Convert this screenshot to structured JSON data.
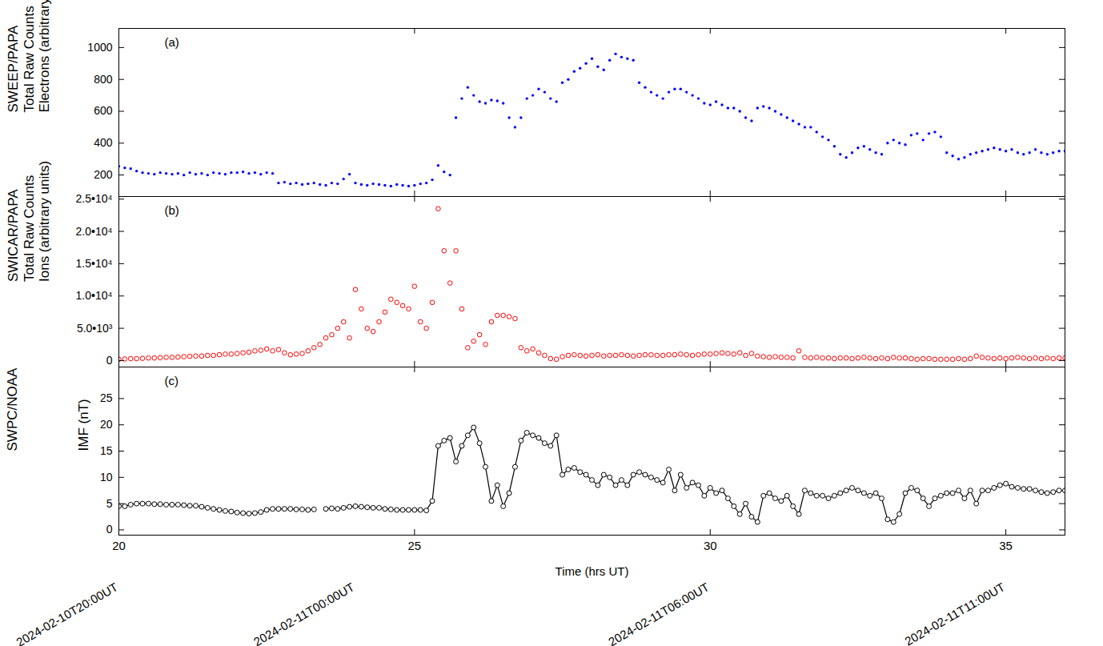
{
  "chart_data": [
    {
      "type": "scatter",
      "title": "(a)",
      "ylabel": [
        "SWEEP/PAPA",
        "Total Raw Counts",
        "Electrons (arbitrary units)"
      ],
      "x": [
        20,
        20.1,
        20.2,
        20.3,
        20.4,
        20.5,
        20.6,
        20.7,
        20.8,
        20.9,
        21,
        21.1,
        21.2,
        21.3,
        21.4,
        21.5,
        21.6,
        21.7,
        21.8,
        21.9,
        22,
        22.1,
        22.2,
        22.3,
        22.4,
        22.5,
        22.6,
        22.7,
        22.8,
        22.9,
        23,
        23.1,
        23.2,
        23.3,
        23.4,
        23.5,
        23.6,
        23.7,
        23.8,
        23.9,
        24,
        24.1,
        24.2,
        24.3,
        24.4,
        24.5,
        24.6,
        24.7,
        24.8,
        24.9,
        25,
        25.1,
        25.2,
        25.3,
        25.4,
        25.5,
        25.6,
        25.7,
        25.8,
        25.9,
        26,
        26.1,
        26.2,
        26.3,
        26.4,
        26.5,
        26.6,
        26.7,
        26.8,
        26.9,
        27,
        27.1,
        27.2,
        27.3,
        27.4,
        27.5,
        27.6,
        27.7,
        27.8,
        27.9,
        28,
        28.1,
        28.2,
        28.3,
        28.4,
        28.5,
        28.6,
        28.7,
        28.8,
        28.9,
        29,
        29.1,
        29.2,
        29.3,
        29.4,
        29.5,
        29.6,
        29.7,
        29.8,
        29.9,
        30,
        30.1,
        30.2,
        30.3,
        30.4,
        30.5,
        30.6,
        30.7,
        30.8,
        30.9,
        31,
        31.1,
        31.2,
        31.3,
        31.4,
        31.5,
        31.6,
        31.7,
        31.8,
        31.9,
        32,
        32.1,
        32.2,
        32.3,
        32.4,
        32.5,
        32.6,
        32.7,
        32.8,
        32.9,
        33,
        33.1,
        33.2,
        33.3,
        33.4,
        33.5,
        33.6,
        33.7,
        33.8,
        33.9,
        34,
        34.1,
        34.2,
        34.3,
        34.4,
        34.5,
        34.6,
        34.7,
        34.8,
        34.9,
        35,
        35.1,
        35.2,
        35.3,
        35.4,
        35.5,
        35.6,
        35.7,
        35.8,
        35.9,
        36
      ],
      "values": [
        255,
        245,
        240,
        225,
        215,
        210,
        205,
        215,
        210,
        205,
        210,
        200,
        215,
        205,
        210,
        200,
        215,
        210,
        205,
        215,
        215,
        220,
        210,
        215,
        205,
        215,
        210,
        150,
        155,
        145,
        150,
        140,
        145,
        150,
        140,
        135,
        150,
        145,
        175,
        205,
        150,
        140,
        135,
        145,
        140,
        135,
        130,
        140,
        135,
        130,
        135,
        145,
        150,
        170,
        260,
        220,
        200,
        560,
        680,
        750,
        700,
        660,
        650,
        670,
        665,
        650,
        560,
        500,
        560,
        680,
        700,
        740,
        720,
        680,
        660,
        780,
        800,
        850,
        870,
        900,
        930,
        880,
        860,
        920,
        960,
        940,
        930,
        920,
        780,
        750,
        720,
        700,
        680,
        720,
        740,
        740,
        720,
        700,
        680,
        650,
        640,
        660,
        640,
        620,
        620,
        600,
        560,
        540,
        620,
        630,
        620,
        600,
        580,
        560,
        540,
        520,
        500,
        500,
        470,
        440,
        420,
        380,
        330,
        310,
        340,
        370,
        380,
        360,
        340,
        330,
        400,
        420,
        400,
        390,
        450,
        460,
        420,
        460,
        470,
        440,
        340,
        320,
        300,
        310,
        330,
        340,
        350,
        360,
        370,
        360,
        350,
        360,
        340,
        330,
        340,
        360,
        340,
        330,
        340,
        350,
        350
      ],
      "color": "#0000ff",
      "marker": "dot",
      "xlim": [
        20,
        36
      ],
      "xticks": [
        20,
        25,
        30,
        35
      ],
      "ylim": [
        65,
        1120
      ],
      "yticks": [
        200,
        400,
        600,
        800,
        1000
      ],
      "grid": false,
      "tick_labels": "y"
    },
    {
      "type": "scatter",
      "title": "(b)",
      "ylabel": [
        "SWICAR/PAPA",
        "Total Raw Counts",
        "Ions (arbitrary units)"
      ],
      "x": [
        20,
        20.1,
        20.2,
        20.3,
        20.4,
        20.5,
        20.6,
        20.7,
        20.8,
        20.9,
        21,
        21.1,
        21.2,
        21.3,
        21.4,
        21.5,
        21.6,
        21.7,
        21.8,
        21.9,
        22,
        22.1,
        22.2,
        22.3,
        22.4,
        22.5,
        22.6,
        22.7,
        22.8,
        22.9,
        23,
        23.1,
        23.2,
        23.3,
        23.4,
        23.5,
        23.6,
        23.7,
        23.8,
        23.9,
        24,
        24.1,
        24.2,
        24.3,
        24.4,
        24.5,
        24.6,
        24.7,
        24.8,
        24.9,
        25,
        25.1,
        25.2,
        25.3,
        25.4,
        25.5,
        25.6,
        25.7,
        25.8,
        25.9,
        26,
        26.1,
        26.2,
        26.3,
        26.4,
        26.5,
        26.6,
        26.7,
        26.8,
        26.9,
        27,
        27.1,
        27.2,
        27.3,
        27.4,
        27.5,
        27.6,
        27.7,
        27.8,
        27.9,
        28,
        28.1,
        28.2,
        28.3,
        28.4,
        28.5,
        28.6,
        28.7,
        28.8,
        28.9,
        29,
        29.1,
        29.2,
        29.3,
        29.4,
        29.5,
        29.6,
        29.7,
        29.8,
        29.9,
        30,
        30.1,
        30.2,
        30.3,
        30.4,
        30.5,
        30.6,
        30.7,
        30.8,
        30.9,
        31,
        31.1,
        31.2,
        31.3,
        31.4,
        31.5,
        31.6,
        31.7,
        31.8,
        31.9,
        32,
        32.1,
        32.2,
        32.3,
        32.4,
        32.5,
        32.6,
        32.7,
        32.8,
        32.9,
        33,
        33.1,
        33.2,
        33.3,
        33.4,
        33.5,
        33.6,
        33.7,
        33.8,
        33.9,
        34,
        34.1,
        34.2,
        34.3,
        34.4,
        34.5,
        34.6,
        34.7,
        34.8,
        34.9,
        35,
        35.1,
        35.2,
        35.3,
        35.4,
        35.5,
        35.6,
        35.7,
        35.8,
        35.9,
        36
      ],
      "values": [
        200,
        250,
        300,
        300,
        350,
        400,
        400,
        450,
        500,
        500,
        550,
        600,
        650,
        700,
        700,
        800,
        800,
        900,
        1000,
        1000,
        1100,
        1200,
        1300,
        1500,
        1600,
        1800,
        1500,
        1700,
        1200,
        900,
        1000,
        1100,
        1500,
        2000,
        2500,
        3500,
        4000,
        5000,
        6000,
        3500,
        11000,
        8000,
        5000,
        4500,
        6000,
        7500,
        9500,
        9000,
        8500,
        8000,
        11500,
        6000,
        5000,
        9000,
        23500,
        17000,
        12000,
        17000,
        8000,
        2000,
        3000,
        4000,
        2500,
        6000,
        7000,
        7000,
        6800,
        6500,
        2000,
        1500,
        1800,
        1200,
        800,
        300,
        200,
        600,
        800,
        900,
        800,
        700,
        800,
        900,
        700,
        800,
        800,
        900,
        800,
        700,
        800,
        900,
        900,
        800,
        800,
        900,
        900,
        1000,
        900,
        800,
        900,
        1000,
        1000,
        1100,
        1200,
        1100,
        1000,
        1200,
        800,
        1100,
        700,
        600,
        500,
        600,
        500,
        500,
        400,
        1500,
        500,
        400,
        500,
        400,
        400,
        300,
        400,
        400,
        300,
        400,
        500,
        400,
        300,
        400,
        300,
        500,
        400,
        400,
        300,
        200,
        300,
        300,
        200,
        200,
        200,
        200,
        300,
        200,
        300,
        700,
        500,
        400,
        300,
        400,
        300,
        400,
        500,
        400,
        300,
        400,
        300,
        400,
        300,
        400,
        400
      ],
      "color": "#ff0000",
      "marker": "circle",
      "xlim": [
        20,
        36
      ],
      "xticks": [
        20,
        25,
        30,
        35
      ],
      "ylim": [
        -1000,
        25400
      ],
      "yticks": [
        0,
        {
          "value": 5000,
          "label": "5.0•10³"
        },
        {
          "value": 10000,
          "label": "1.0•10⁴"
        },
        {
          "value": 15000,
          "label": "1.5•10⁴"
        },
        {
          "value": 20000,
          "label": "2.0•10⁴"
        },
        {
          "value": 25000,
          "label": "2.5•10⁴"
        }
      ],
      "grid": false,
      "tick_labels": "y"
    },
    {
      "type": "line",
      "title": "(c)",
      "source": "SWPC/NOAA",
      "ylabel": [
        "IMF (nT)"
      ],
      "xlabel": "Time (hrs UT)",
      "x": [
        20,
        20.1,
        20.2,
        20.3,
        20.4,
        20.5,
        20.6,
        20.7,
        20.8,
        20.9,
        21,
        21.1,
        21.2,
        21.3,
        21.4,
        21.5,
        21.6,
        21.7,
        21.8,
        21.9,
        22,
        22.1,
        22.2,
        22.3,
        22.4,
        22.5,
        22.6,
        22.7,
        22.8,
        22.9,
        23,
        23.1,
        23.2,
        23.3,
        23.4,
        23.5,
        23.6,
        23.7,
        23.8,
        23.9,
        24,
        24.1,
        24.2,
        24.3,
        24.4,
        24.5,
        24.6,
        24.7,
        24.8,
        24.9,
        25,
        25.1,
        25.2,
        25.3,
        25.4,
        25.5,
        25.6,
        25.7,
        25.8,
        25.9,
        26,
        26.1,
        26.2,
        26.3,
        26.4,
        26.5,
        26.6,
        26.7,
        26.8,
        26.9,
        27,
        27.1,
        27.2,
        27.3,
        27.4,
        27.5,
        27.6,
        27.7,
        27.8,
        27.9,
        28,
        28.1,
        28.2,
        28.3,
        28.4,
        28.5,
        28.6,
        28.7,
        28.8,
        28.9,
        29,
        29.1,
        29.2,
        29.3,
        29.4,
        29.5,
        29.6,
        29.7,
        29.8,
        29.9,
        30,
        30.1,
        30.2,
        30.3,
        30.4,
        30.5,
        30.6,
        30.7,
        30.8,
        30.9,
        31,
        31.1,
        31.2,
        31.3,
        31.4,
        31.5,
        31.6,
        31.7,
        31.8,
        31.9,
        32,
        32.1,
        32.2,
        32.3,
        32.4,
        32.5,
        32.6,
        32.7,
        32.8,
        32.9,
        33,
        33.1,
        33.2,
        33.3,
        33.4,
        33.5,
        33.6,
        33.7,
        33.8,
        33.9,
        34,
        34.1,
        34.2,
        34.3,
        34.4,
        34.5,
        34.6,
        34.7,
        34.8,
        34.9,
        35,
        35.1,
        35.2,
        35.3,
        35.4,
        35.5,
        35.6,
        35.7,
        35.8,
        35.9,
        36
      ],
      "values": [
        4.5,
        4.5,
        4.8,
        5.0,
        5.0,
        5.0,
        4.9,
        4.9,
        4.8,
        4.8,
        4.8,
        4.7,
        4.6,
        4.6,
        4.4,
        4.2,
        4.0,
        3.8,
        3.6,
        3.5,
        3.3,
        3.2,
        3.1,
        3.2,
        3.4,
        3.8,
        4.0,
        4.0,
        4.0,
        4.0,
        3.9,
        3.9,
        3.8,
        3.9,
        null,
        4.0,
        4.1,
        4.0,
        4.2,
        4.4,
        4.5,
        4.4,
        4.3,
        4.2,
        4.2,
        4.0,
        3.9,
        3.8,
        3.8,
        3.8,
        3.8,
        3.8,
        3.7,
        5.5,
        16,
        17,
        17.5,
        13,
        16,
        18,
        19.5,
        16.5,
        12,
        5.5,
        8.5,
        4.5,
        7,
        12,
        17,
        18.5,
        18,
        17.5,
        16.5,
        16,
        18,
        10.5,
        11.5,
        11.8,
        11,
        10.5,
        9.5,
        8.5,
        10.5,
        10,
        8.5,
        9.5,
        8.5,
        10.5,
        11,
        10.5,
        10,
        9.5,
        9,
        11.5,
        7.5,
        10.5,
        8,
        9,
        8.5,
        6.5,
        8,
        7,
        7.5,
        6,
        4.5,
        3,
        5,
        2.5,
        1.5,
        6.5,
        7,
        6,
        5.5,
        6.5,
        4.5,
        3,
        7.5,
        7,
        6.5,
        6.5,
        6,
        6.5,
        7,
        7.5,
        8,
        7.5,
        7,
        6.5,
        7,
        6,
        2,
        1.5,
        3,
        7,
        8,
        7.5,
        6,
        4.5,
        6,
        6.5,
        7,
        7,
        7.5,
        6,
        7.5,
        5,
        7.5,
        7.5,
        8,
        8.5,
        8.8,
        8.2,
        8,
        7.8,
        7.8,
        7.5,
        7.2,
        7,
        7.2,
        7.5,
        7.5
      ],
      "color": "#000000",
      "marker": "circle",
      "line_style": "solid",
      "xlim": [
        20,
        36
      ],
      "xticks": [
        20,
        25,
        30,
        35
      ],
      "date_ticks": [
        {
          "value": 20,
          "label": "2024-02-10T20:00UT"
        },
        {
          "value": 24,
          "label": "2024-02-11T00:00UT"
        },
        {
          "value": 30,
          "label": "2024-02-11T06:00UT"
        },
        {
          "value": 35,
          "label": "2024-02-11T11:00UT"
        }
      ],
      "ylim": [
        -1,
        31
      ],
      "yticks": [
        0,
        5,
        10,
        15,
        20,
        25
      ],
      "grid": false
    }
  ]
}
